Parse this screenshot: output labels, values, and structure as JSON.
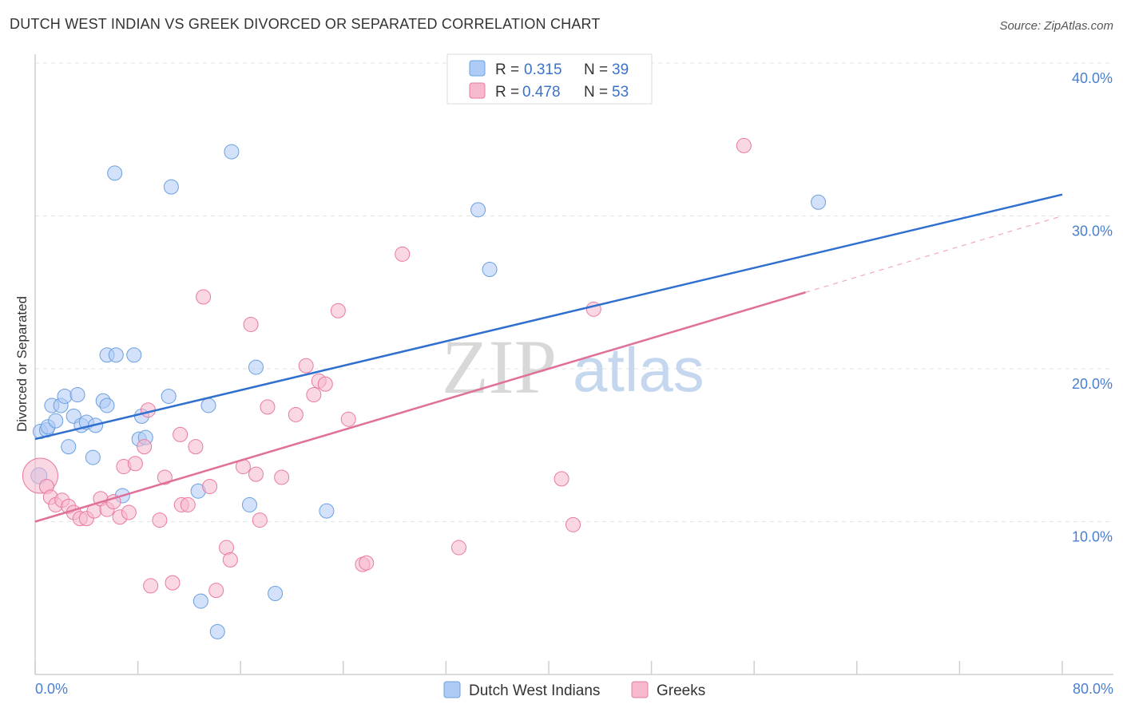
{
  "header": {
    "title": "DUTCH WEST INDIAN VS GREEK DIVORCED OR SEPARATED CORRELATION CHART",
    "source": "Source: ZipAtlas.com"
  },
  "watermark": {
    "zip": "ZIP",
    "atlas": "atlas"
  },
  "legend": {
    "r_label": "R =",
    "n_label": "N =",
    "rows": [
      {
        "r": "0.315",
        "n": "39",
        "color": "#aecbf5"
      },
      {
        "r": "0.478",
        "n": "53",
        "color": "#f6b8cc"
      }
    ]
  },
  "bottom_legend": [
    "Dutch West Indians",
    "Greeks"
  ],
  "chart_data": {
    "type": "scatter",
    "ylabel": "Divorced or Separated",
    "xlabel": "",
    "xlim": [
      0,
      80
    ],
    "ylim": [
      0,
      40
    ],
    "x_tick_labels": [
      "0.0%",
      "80.0%"
    ],
    "y_ticks": [
      10,
      20,
      30,
      40
    ],
    "y_tick_labels": [
      "10.0%",
      "20.0%",
      "30.0%",
      "40.0%"
    ],
    "grid": true,
    "legend_position": "top-center",
    "series": [
      {
        "name": "Dutch West Indians",
        "color": "#6a9fe0",
        "fill": "#aecbf5",
        "trend": {
          "x0": 0,
          "y0": 15.4,
          "x1": 80,
          "y1": 31.4,
          "solid_to": 80
        },
        "points": [
          [
            0.3,
            13.0
          ],
          [
            0.4,
            15.9
          ],
          [
            0.9,
            16.0
          ],
          [
            1.0,
            16.2
          ],
          [
            1.3,
            17.6
          ],
          [
            1.6,
            16.6
          ],
          [
            2.0,
            17.6
          ],
          [
            2.3,
            18.2
          ],
          [
            2.6,
            14.9
          ],
          [
            3.0,
            16.9
          ],
          [
            3.3,
            18.3
          ],
          [
            3.6,
            16.3
          ],
          [
            4.0,
            16.5
          ],
          [
            4.5,
            14.2
          ],
          [
            4.7,
            16.3
          ],
          [
            5.3,
            17.9
          ],
          [
            5.6,
            17.6
          ],
          [
            5.6,
            20.9
          ],
          [
            6.2,
            32.8
          ],
          [
            6.3,
            20.9
          ],
          [
            6.8,
            11.7
          ],
          [
            7.7,
            20.9
          ],
          [
            8.1,
            15.4
          ],
          [
            8.3,
            16.9
          ],
          [
            8.6,
            15.5
          ],
          [
            10.4,
            18.2
          ],
          [
            10.6,
            31.9
          ],
          [
            12.7,
            12.0
          ],
          [
            12.9,
            4.8
          ],
          [
            13.5,
            17.6
          ],
          [
            14.2,
            2.8
          ],
          [
            15.3,
            34.2
          ],
          [
            16.7,
            11.1
          ],
          [
            17.2,
            20.1
          ],
          [
            18.7,
            5.3
          ],
          [
            22.7,
            10.7
          ],
          [
            34.5,
            30.4
          ],
          [
            35.4,
            26.5
          ],
          [
            61.0,
            30.9
          ]
        ]
      },
      {
        "name": "Greeks",
        "color": "#e97aa0",
        "fill": "#f6b8cc",
        "trend": {
          "x0": 0,
          "y0": 10.0,
          "x1": 80,
          "y1": 30.0,
          "solid_to": 60
        },
        "points": [
          [
            0.4,
            13.0
          ],
          [
            0.9,
            12.3
          ],
          [
            1.2,
            11.6
          ],
          [
            1.6,
            11.1
          ],
          [
            2.1,
            11.4
          ],
          [
            2.6,
            11.0
          ],
          [
            3.0,
            10.6
          ],
          [
            3.5,
            10.2
          ],
          [
            4.0,
            10.2
          ],
          [
            4.6,
            10.7
          ],
          [
            5.1,
            11.5
          ],
          [
            5.6,
            10.8
          ],
          [
            6.1,
            11.3
          ],
          [
            6.6,
            10.3
          ],
          [
            6.9,
            13.6
          ],
          [
            7.3,
            10.6
          ],
          [
            7.8,
            13.8
          ],
          [
            8.5,
            14.9
          ],
          [
            8.8,
            17.3
          ],
          [
            9.0,
            5.8
          ],
          [
            9.7,
            10.1
          ],
          [
            10.1,
            12.9
          ],
          [
            10.7,
            6.0
          ],
          [
            11.3,
            15.7
          ],
          [
            11.4,
            11.1
          ],
          [
            11.9,
            11.1
          ],
          [
            12.5,
            14.9
          ],
          [
            13.1,
            24.7
          ],
          [
            13.6,
            12.3
          ],
          [
            14.1,
            5.5
          ],
          [
            14.9,
            8.3
          ],
          [
            15.2,
            7.5
          ],
          [
            16.2,
            13.6
          ],
          [
            16.8,
            22.9
          ],
          [
            17.2,
            13.1
          ],
          [
            17.5,
            10.1
          ],
          [
            18.1,
            17.5
          ],
          [
            19.2,
            12.9
          ],
          [
            20.3,
            17.0
          ],
          [
            21.1,
            20.2
          ],
          [
            21.7,
            18.3
          ],
          [
            22.1,
            19.2
          ],
          [
            22.6,
            19.0
          ],
          [
            23.6,
            23.8
          ],
          [
            24.4,
            16.7
          ],
          [
            25.5,
            7.2
          ],
          [
            25.8,
            7.3
          ],
          [
            28.6,
            27.5
          ],
          [
            33.0,
            8.3
          ],
          [
            41.0,
            12.8
          ],
          [
            41.9,
            9.8
          ],
          [
            43.5,
            23.9
          ],
          [
            55.2,
            34.6
          ]
        ]
      }
    ]
  }
}
